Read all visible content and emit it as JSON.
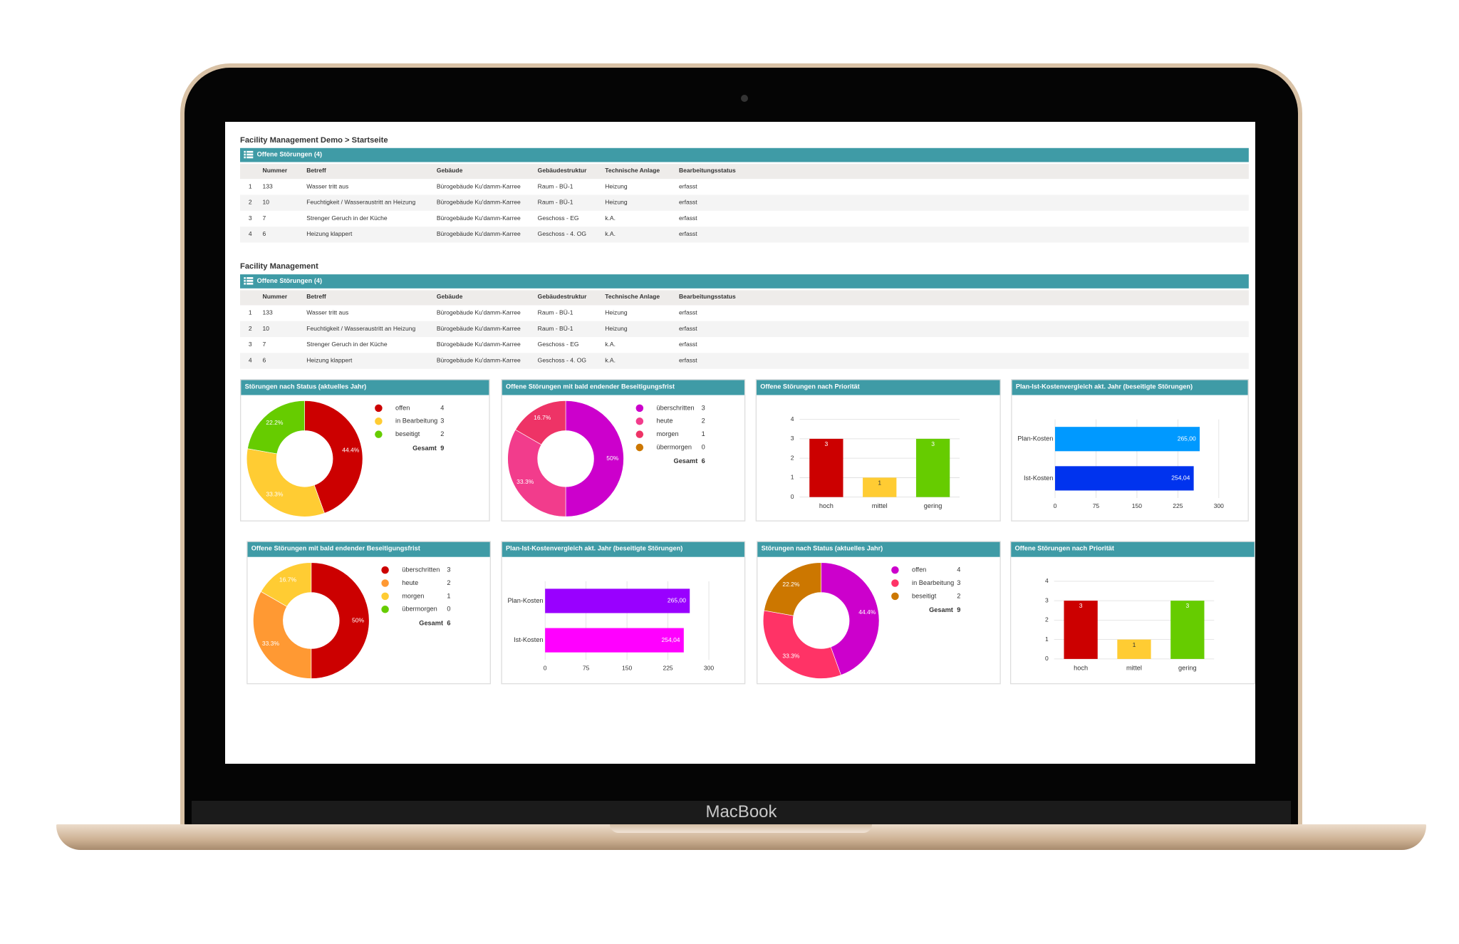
{
  "device_label": "MacBook",
  "sections": [
    {
      "title": "Facility Management Demo > Startseite",
      "panel_title": "Offene Störungen (4)",
      "columns": [
        "Nummer",
        "Betreff",
        "Gebäude",
        "Gebäudestruktur",
        "Technische Anlage",
        "Bearbeitungsstatus"
      ],
      "rows": [
        [
          "1",
          "133",
          "Wasser tritt aus",
          "Bürogebäude Ku'damm-Karree",
          "Raum - BÜ-1",
          "Heizung",
          "erfasst"
        ],
        [
          "2",
          "10",
          "Feuchtigkeit / Wasseraustritt an Heizung",
          "Bürogebäude Ku'damm-Karree",
          "Raum - BÜ-1",
          "Heizung",
          "erfasst"
        ],
        [
          "3",
          "7",
          "Strenger Geruch in der Küche",
          "Bürogebäude Ku'damm-Karree",
          "Geschoss - EG",
          "k.A.",
          "erfasst"
        ],
        [
          "4",
          "6",
          "Heizung klappert",
          "Bürogebäude Ku'damm-Karree",
          "Geschoss - 4. OG",
          "k.A.",
          "erfasst"
        ]
      ]
    },
    {
      "title": "Facility Management",
      "panel_title": "Offene Störungen (4)",
      "columns": [
        "Nummer",
        "Betreff",
        "Gebäude",
        "Gebäudestruktur",
        "Technische Anlage",
        "Bearbeitungsstatus"
      ],
      "rows": [
        [
          "1",
          "133",
          "Wasser tritt aus",
          "Bürogebäude Ku'damm-Karree",
          "Raum - BÜ-1",
          "Heizung",
          "erfasst"
        ],
        [
          "2",
          "10",
          "Feuchtigkeit / Wasseraustritt an Heizung",
          "Bürogebäude Ku'damm-Karree",
          "Raum - BÜ-1",
          "Heizung",
          "erfasst"
        ],
        [
          "3",
          "7",
          "Strenger Geruch in der Küche",
          "Bürogebäude Ku'damm-Karree",
          "Geschoss - EG",
          "k.A.",
          "erfasst"
        ],
        [
          "4",
          "6",
          "Heizung klappert",
          "Bürogebäude Ku'damm-Karree",
          "Geschoss - 4. OG",
          "k.A.",
          "erfasst"
        ]
      ]
    }
  ],
  "widgets": [
    {
      "type": "donut",
      "title": "Störungen nach Status (aktuelles Jahr)",
      "items": [
        {
          "label": "offen",
          "value": 4,
          "color": "#cc0000",
          "percent_label": "44.4%"
        },
        {
          "label": "in Bearbeitung",
          "value": 3,
          "color": "#ffcc33",
          "percent_label": "33.3%"
        },
        {
          "label": "beseitigt",
          "value": 2,
          "color": "#66cc00",
          "percent_label": "22.2%"
        }
      ],
      "total_label": "Gesamt",
      "total": 9
    },
    {
      "type": "donut",
      "title": "Offene Störungen mit bald endender Beseitigungsfrist",
      "items": [
        {
          "label": "überschritten",
          "value": 3,
          "color": "#cc00cc",
          "percent_label": "50%"
        },
        {
          "label": "heute",
          "value": 2,
          "color": "#f23c8c",
          "percent_label": "33.3%"
        },
        {
          "label": "morgen",
          "value": 1,
          "color": "#ee3366",
          "percent_label": "16.7%"
        },
        {
          "label": "übermorgen",
          "value": 0,
          "color": "#cc7700"
        }
      ],
      "total_label": "Gesamt",
      "total": 6
    },
    {
      "type": "bar",
      "title": "Offene Störungen nach Priorität",
      "categories": [
        "hoch",
        "mittel",
        "gering"
      ],
      "values": [
        3,
        1,
        3
      ],
      "colors": [
        "#cc0000",
        "#ffcc33",
        "#66cc00"
      ],
      "ylim": [
        0,
        4
      ],
      "yticks": [
        0,
        1,
        2,
        3,
        4
      ]
    },
    {
      "type": "hbar",
      "title": "Plan-Ist-Kostenvergleich akt. Jahr (beseitigte Störungen)",
      "categories": [
        "Plan-Kosten",
        "Ist-Kosten"
      ],
      "values": [
        265,
        254.04
      ],
      "value_labels": [
        "265,00",
        "254,04"
      ],
      "colors": [
        "#0099ff",
        "#0033ee"
      ],
      "xlim": [
        0,
        300
      ],
      "xticks": [
        0,
        75,
        150,
        225,
        300
      ]
    },
    {
      "type": "donut",
      "title": "Offene Störungen mit bald endender Beseitigungsfrist",
      "items": [
        {
          "label": "überschritten",
          "value": 3,
          "color": "#cc0000",
          "percent_label": "50%"
        },
        {
          "label": "heute",
          "value": 2,
          "color": "#ff9933",
          "percent_label": "33.3%"
        },
        {
          "label": "morgen",
          "value": 1,
          "color": "#ffcc33",
          "percent_label": "16.7%"
        },
        {
          "label": "übermorgen",
          "value": 0,
          "color": "#66cc00"
        }
      ],
      "total_label": "Gesamt",
      "total": 6
    },
    {
      "type": "hbar",
      "title": "Plan-Ist-Kostenvergleich akt. Jahr (beseitigte Störungen)",
      "categories": [
        "Plan-Kosten",
        "Ist-Kosten"
      ],
      "values": [
        265,
        254.04
      ],
      "value_labels": [
        "265,00",
        "254,04"
      ],
      "colors": [
        "#9900ff",
        "#ff00ff"
      ],
      "xlim": [
        0,
        300
      ],
      "xticks": [
        0,
        75,
        150,
        225,
        300
      ]
    },
    {
      "type": "donut",
      "title": "Störungen nach Status (aktuelles Jahr)",
      "items": [
        {
          "label": "offen",
          "value": 4,
          "color": "#cc00cc",
          "percent_label": "44.4%"
        },
        {
          "label": "in Bearbeitung",
          "value": 3,
          "color": "#ff3366",
          "percent_label": "33.3%"
        },
        {
          "label": "beseitigt",
          "value": 2,
          "color": "#cc7700",
          "percent_label": "22.2%"
        }
      ],
      "total_label": "Gesamt",
      "total": 9
    },
    {
      "type": "bar",
      "title": "Offene Störungen nach Priorität",
      "categories": [
        "hoch",
        "mittel",
        "gering"
      ],
      "values": [
        3,
        1,
        3
      ],
      "colors": [
        "#cc0000",
        "#ffcc33",
        "#66cc00"
      ],
      "ylim": [
        0,
        4
      ],
      "yticks": [
        0,
        1,
        2,
        3,
        4
      ]
    }
  ]
}
